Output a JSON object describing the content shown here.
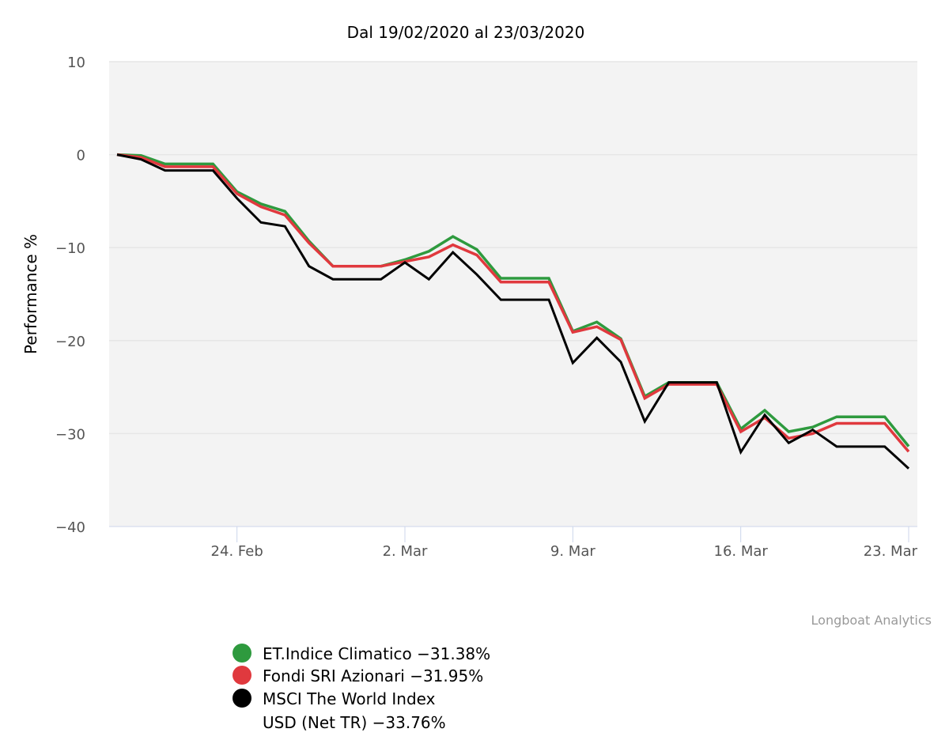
{
  "chart_data": {
    "type": "line",
    "title": "Dal 19/02/2020 al 23/03/2020",
    "xlabel": "",
    "ylabel": "Performance %",
    "ylim": [
      -40,
      10
    ],
    "yticks": [
      10,
      0,
      -10,
      -20,
      -30,
      -40
    ],
    "ytick_labels": [
      "10",
      "0",
      "−10",
      "−20",
      "−30",
      "−40"
    ],
    "x": [
      "2020-02-19",
      "2020-02-20",
      "2020-02-21",
      "2020-02-22",
      "2020-02-23",
      "2020-02-24",
      "2020-02-25",
      "2020-02-26",
      "2020-02-27",
      "2020-02-28",
      "2020-02-29",
      "2020-03-01",
      "2020-03-02",
      "2020-03-03",
      "2020-03-04",
      "2020-03-05",
      "2020-03-06",
      "2020-03-07",
      "2020-03-08",
      "2020-03-09",
      "2020-03-10",
      "2020-03-11",
      "2020-03-12",
      "2020-03-13",
      "2020-03-14",
      "2020-03-15",
      "2020-03-16",
      "2020-03-17",
      "2020-03-18",
      "2020-03-19",
      "2020-03-20",
      "2020-03-21",
      "2020-03-22",
      "2020-03-23"
    ],
    "xticks": [
      "2020-02-24",
      "2020-03-02",
      "2020-03-09",
      "2020-03-16",
      "2020-03-23"
    ],
    "xtick_labels": [
      "24. Feb",
      "2. Mar",
      "9. Mar",
      "16. Mar",
      "23. Mar"
    ],
    "series": [
      {
        "name": "ET.Indice Climatico",
        "legend_lines": [
          "ET.Indice Climatico −31.38%"
        ],
        "color": "#2e9a3e",
        "values": [
          0.0,
          -0.1,
          -1.0,
          -1.0,
          -1.0,
          -4.0,
          -5.3,
          -6.1,
          -9.3,
          -12.0,
          -12.0,
          -12.0,
          -11.3,
          -10.4,
          -8.8,
          -10.2,
          -13.3,
          -13.3,
          -13.3,
          -19.0,
          -18.0,
          -19.8,
          -26.0,
          -24.5,
          -24.5,
          -24.5,
          -29.5,
          -27.5,
          -29.8,
          -29.3,
          -28.2,
          -28.2,
          -28.2,
          -31.38
        ]
      },
      {
        "name": "Fondi SRI Azionari",
        "legend_lines": [
          "Fondi SRI Azionari −31.95%"
        ],
        "color": "#e0393e",
        "values": [
          0.0,
          -0.3,
          -1.3,
          -1.3,
          -1.3,
          -4.2,
          -5.6,
          -6.5,
          -9.5,
          -12.0,
          -12.0,
          -12.0,
          -11.5,
          -11.0,
          -9.7,
          -10.8,
          -13.7,
          -13.7,
          -13.7,
          -19.1,
          -18.5,
          -19.9,
          -26.2,
          -24.7,
          -24.7,
          -24.7,
          -29.8,
          -28.3,
          -30.5,
          -30.0,
          -28.9,
          -28.9,
          -28.9,
          -31.95
        ]
      },
      {
        "name": "MSCI The World Index USD (Net TR)",
        "legend_lines": [
          "MSCI The World Index",
          "USD (Net TR) −33.76%"
        ],
        "color": "#000000",
        "values": [
          0.0,
          -0.5,
          -1.7,
          -1.7,
          -1.7,
          -4.7,
          -7.3,
          -7.7,
          -12.0,
          -13.4,
          -13.4,
          -13.4,
          -11.6,
          -13.4,
          -10.5,
          -12.9,
          -15.6,
          -15.6,
          -15.6,
          -22.4,
          -19.7,
          -22.3,
          -28.7,
          -24.5,
          -24.5,
          -24.5,
          -32.0,
          -28.0,
          -31.0,
          -29.6,
          -31.4,
          -31.4,
          -31.4,
          -33.76
        ]
      }
    ],
    "grid": true,
    "legend_position": "bottom-left"
  },
  "credit": "Longboat Analytics"
}
